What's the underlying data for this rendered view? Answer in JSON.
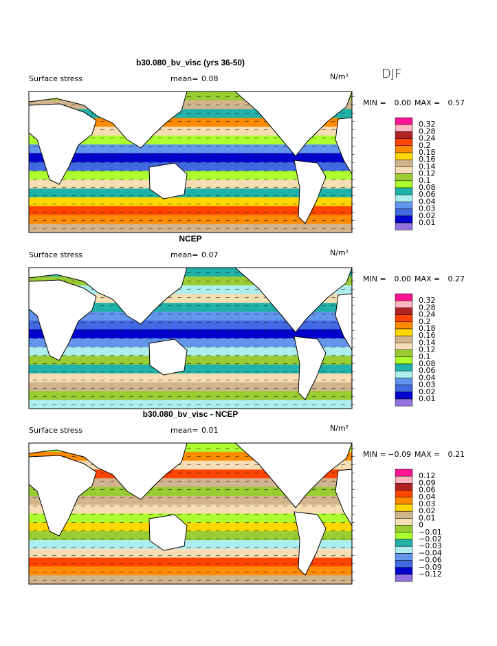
{
  "header": {
    "season": "DJF"
  },
  "colorbar_colors": [
    "#ff1493",
    "#ffb6c1",
    "#b22222",
    "#ff4500",
    "#ff8c00",
    "#ffd700",
    "#d2b48c",
    "#f5deb3",
    "#9acd32",
    "#adff2f",
    "#20b2aa",
    "#afeeee",
    "#6495ed",
    "#4169e1",
    "#0000cd",
    "#9370db"
  ],
  "panels": [
    {
      "title": "b30.080_bv_visc (yrs 36-50)",
      "label": "Surface stress",
      "mean_label": "mean=",
      "mean": "0.08",
      "unit": "N/m²",
      "min_label": "MIN =",
      "min": "0.00",
      "max_label": "MAX =",
      "max": "0.57",
      "colorbar_labels": [
        "0.32",
        "0.28",
        "0.24",
        "0.2",
        "0.18",
        "0.16",
        "0.14",
        "0.12",
        "0.1",
        "0.08",
        "0.06",
        "0.04",
        "0.03",
        "0.02",
        "0.01"
      ]
    },
    {
      "title": "NCEP",
      "label": "Surface stress",
      "mean_label": "mean=",
      "mean": "0.07",
      "unit": "N/m²",
      "min_label": "MIN =",
      "min": "0.00",
      "max_label": "MAX =",
      "max": "0.27",
      "colorbar_labels": [
        "0.32",
        "0.28",
        "0.24",
        "0.2",
        "0.18",
        "0.16",
        "0.14",
        "0.12",
        "0.1",
        "0.08",
        "0.06",
        "0.04",
        "0.03",
        "0.02",
        "0.01"
      ]
    },
    {
      "title": "b30.080_bv_visc - NCEP",
      "label": "Surface stress",
      "mean_label": "mean=",
      "mean": "0.01",
      "unit": "N/m²",
      "min_label": "MIN =",
      "min": "−0.09",
      "max_label": "MAX =",
      "max": "0.21",
      "colorbar_labels": [
        "0.12",
        "0.09",
        "0.06",
        "0.04",
        "0.03",
        "0.02",
        "0.01",
        "0",
        "−0.01",
        "−0.02",
        "−0.03",
        "−0.04",
        "−0.06",
        "−0.09",
        "−0.12"
      ]
    }
  ]
}
